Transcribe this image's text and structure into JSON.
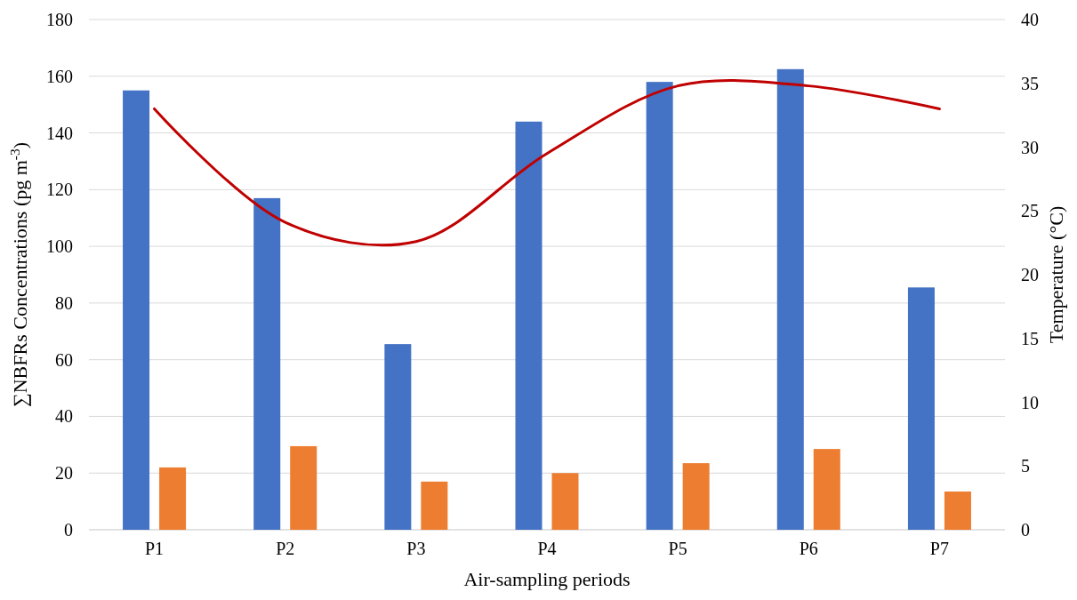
{
  "chart_data": {
    "type": "bar",
    "xlabel": "Air-sampling periods",
    "ylabel": "∑NBFRs Concentrations (pg m$^{-3}$)",
    "y2label": "Temperature  (°C)",
    "categories": [
      "P1",
      "P2",
      "P3",
      "P4",
      "P5",
      "P6",
      "P7"
    ],
    "series": [
      {
        "color": "#4472c4",
        "values": [
          155,
          117,
          65.5,
          144,
          158,
          162.5,
          85.5
        ]
      },
      {
        "color": "#ed7d31",
        "values": [
          22,
          29.5,
          17,
          20,
          23.5,
          28.5,
          13.5
        ]
      },
      {
        "type": "line",
        "axis": "y2",
        "color": "#c00000",
        "values": [
          33,
          24.1,
          22.6,
          29.5,
          34.8,
          34.8,
          33
        ]
      }
    ],
    "ylim": [
      0,
      180
    ],
    "yticks": [
      0,
      20,
      40,
      60,
      80,
      100,
      120,
      140,
      160,
      180
    ],
    "y2lim": [
      0,
      40
    ],
    "y2ticks": [
      0,
      5,
      10,
      15,
      20,
      25,
      30,
      35,
      40
    ],
    "grid": "y"
  }
}
